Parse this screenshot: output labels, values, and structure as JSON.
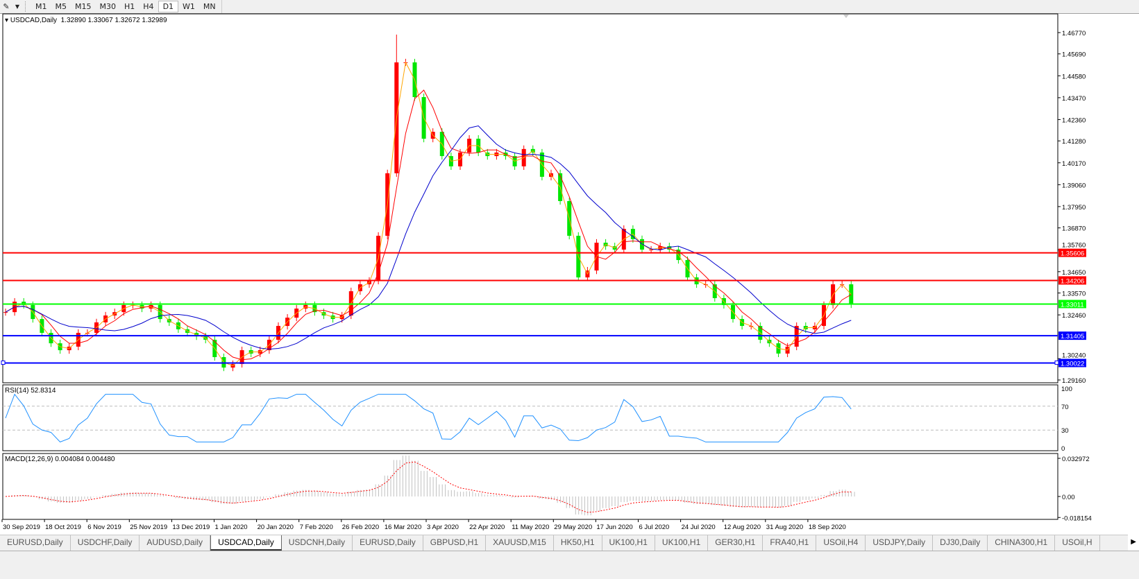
{
  "toolbar": {
    "tools_icon": "line-tools-icon",
    "dropdown_icon": "chevron-down-icon",
    "timeframes": [
      "M1",
      "M5",
      "M15",
      "M30",
      "H1",
      "H4",
      "D1",
      "W1",
      "MN"
    ],
    "active_timeframe": "D1"
  },
  "chart": {
    "title": "USDCAD,Daily",
    "ohlc": "1.32890 1.33067 1.32672 1.32989",
    "rsi_label": "RSI(14) 52.8314",
    "macd_label": "MACD(12,26,9) 0.004084 0.004480"
  },
  "chart_data": {
    "type": "candlestick",
    "symbol": "USDCAD",
    "timeframe": "Daily",
    "closes": [
      1.326,
      1.3313,
      1.3296,
      1.3225,
      1.3155,
      1.3102,
      1.3067,
      1.3085,
      1.3155,
      1.3155,
      1.3208,
      1.3243,
      1.326,
      1.3296,
      1.3296,
      1.3278,
      1.3296,
      1.3225,
      1.3208,
      1.3173,
      1.3155,
      1.3137,
      1.312,
      1.3032,
      1.2979,
      1.2997,
      1.3067,
      1.305,
      1.3067,
      1.312,
      1.319,
      1.3232,
      1.3278,
      1.3296,
      1.326,
      1.3243,
      1.3225,
      1.3243,
      1.3366,
      1.3401,
      1.3419,
      1.3647,
      1.3964,
      1.4526,
      1.4526,
      1.435,
      1.4139,
      1.4174,
      1.4051,
      1.3999,
      1.4069,
      1.4139,
      1.4069,
      1.4051,
      1.4069,
      1.4051,
      1.3999,
      1.4087,
      1.4069,
      1.3946,
      1.3964,
      1.3823,
      1.3647,
      1.3436,
      1.3471,
      1.3612,
      1.3594,
      1.3577,
      1.3682,
      1.363,
      1.3577,
      1.3577,
      1.3594,
      1.3577,
      1.3524,
      1.3436,
      1.3401,
      1.3401,
      1.3331,
      1.3296,
      1.3225,
      1.319,
      1.319,
      1.312,
      1.3102,
      1.305,
      1.3085,
      1.319,
      1.3173,
      1.319,
      1.3296,
      1.3401,
      1.3401,
      1.32989
    ],
    "period_high": 1.4667,
    "x_ticks": [
      "30 Sep 2019",
      "18 Oct 2019",
      "6 Nov 2019",
      "25 Nov 2019",
      "13 Dec 2019",
      "1 Jan 2020",
      "20 Jan 2020",
      "7 Feb 2020",
      "26 Feb 2020",
      "16 Mar 2020",
      "3 Apr 2020",
      "22 Apr 2020",
      "11 May 2020",
      "29 May 2020",
      "17 Jun 2020",
      "6 Jul 2020",
      "24 Jul 2020",
      "12 Aug 2020",
      "31 Aug 2020",
      "18 Sep 2020"
    ],
    "y_ticks": [
      "1.46770",
      "1.45690",
      "1.44580",
      "1.43470",
      "1.42360",
      "1.41280",
      "1.40170",
      "1.39060",
      "1.37950",
      "1.36870",
      "1.35760",
      "1.34650",
      "1.33570",
      "1.32460",
      "1.30240",
      "1.29160"
    ],
    "ylim": [
      1.2916,
      1.4677
    ],
    "up_color": "#ff0000",
    "down_color": "#00e600",
    "moving_averages": [
      {
        "color": "#ffa500"
      },
      {
        "color": "#ff0000"
      },
      {
        "color": "#0000cd"
      }
    ],
    "levels": [
      {
        "price": 1.35606,
        "label": "1.35606",
        "color": "#ff0000"
      },
      {
        "price": 1.34206,
        "label": "1.34206",
        "color": "#ff0000"
      },
      {
        "price": 1.33011,
        "label": "1.33011",
        "color": "#00ff00"
      },
      {
        "price": 1.31405,
        "label": "1.31405",
        "color": "#0000ff"
      },
      {
        "price": 1.30022,
        "label": "1.30022",
        "color": "#0000ff"
      }
    ],
    "rsi": {
      "color": "#1e90ff",
      "levels": [
        70,
        30
      ],
      "ticks": [
        "100",
        "70",
        "30",
        "0"
      ],
      "ylim": [
        0,
        100
      ]
    },
    "macd": {
      "histogram_color": "#c0c0c0",
      "signal_color": "#ff0000",
      "ticks": [
        "0.032972",
        "0.00",
        "-0.018154"
      ],
      "ylim": [
        -0.018154,
        0.032972
      ]
    },
    "grid": false
  },
  "tabs": [
    "EURUSD,Daily",
    "USDCHF,Daily",
    "AUDUSD,Daily",
    "USDCAD,Daily",
    "USDCNH,Daily",
    "EURUSD,Daily",
    "GBPUSD,H1",
    "XAUUSD,M15",
    "HK50,H1",
    "UK100,H1",
    "UK100,H1",
    "GER30,H1",
    "FRA40,H1",
    "USOil,H4",
    "USDJPY,Daily",
    "DJ30,Daily",
    "CHINA300,H1",
    "USOil,H"
  ],
  "active_tab": "USDCAD,Daily",
  "tab_scroll_icon": "chevron-right-icon"
}
